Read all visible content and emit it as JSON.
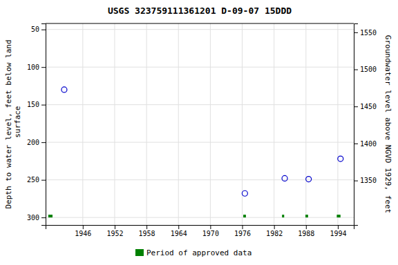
{
  "chart_data": {
    "type": "scatter",
    "title": "USGS 323759111361201 D-09-07 15DDD",
    "ylabel": "Depth to water level, feet below land\n surface",
    "y2label": "Groundwater level above NGVD 1929, feet",
    "xlim": [
      1939,
      1997
    ],
    "xticks": [
      1946,
      1952,
      1958,
      1964,
      1970,
      1976,
      1982,
      1988,
      1994
    ],
    "ylim": [
      310,
      42
    ],
    "yticks": [
      50,
      100,
      150,
      200,
      250,
      300
    ],
    "y2lim": [
      1290,
      1562
    ],
    "y2ticks": [
      1350,
      1400,
      1450,
      1500,
      1550
    ],
    "grid": true,
    "legend": "bottom",
    "series": [
      {
        "type": "scatter",
        "marker": "open-circle",
        "color": "#0000cc",
        "x": [
          1942.5,
          1976.5,
          1984.0,
          1988.5,
          1994.5
        ],
        "values": [
          130,
          268,
          248,
          249,
          222
        ]
      },
      {
        "name": "Period of approved data",
        "type": "bar",
        "color": "#008000",
        "x_start": [
          1939.5,
          1976.2,
          1983.5,
          1987.9,
          1993.8
        ],
        "x_end": [
          1940.3,
          1976.7,
          1983.9,
          1988.4,
          1994.5
        ],
        "values": [
          300,
          300,
          300,
          300,
          300
        ]
      }
    ]
  }
}
